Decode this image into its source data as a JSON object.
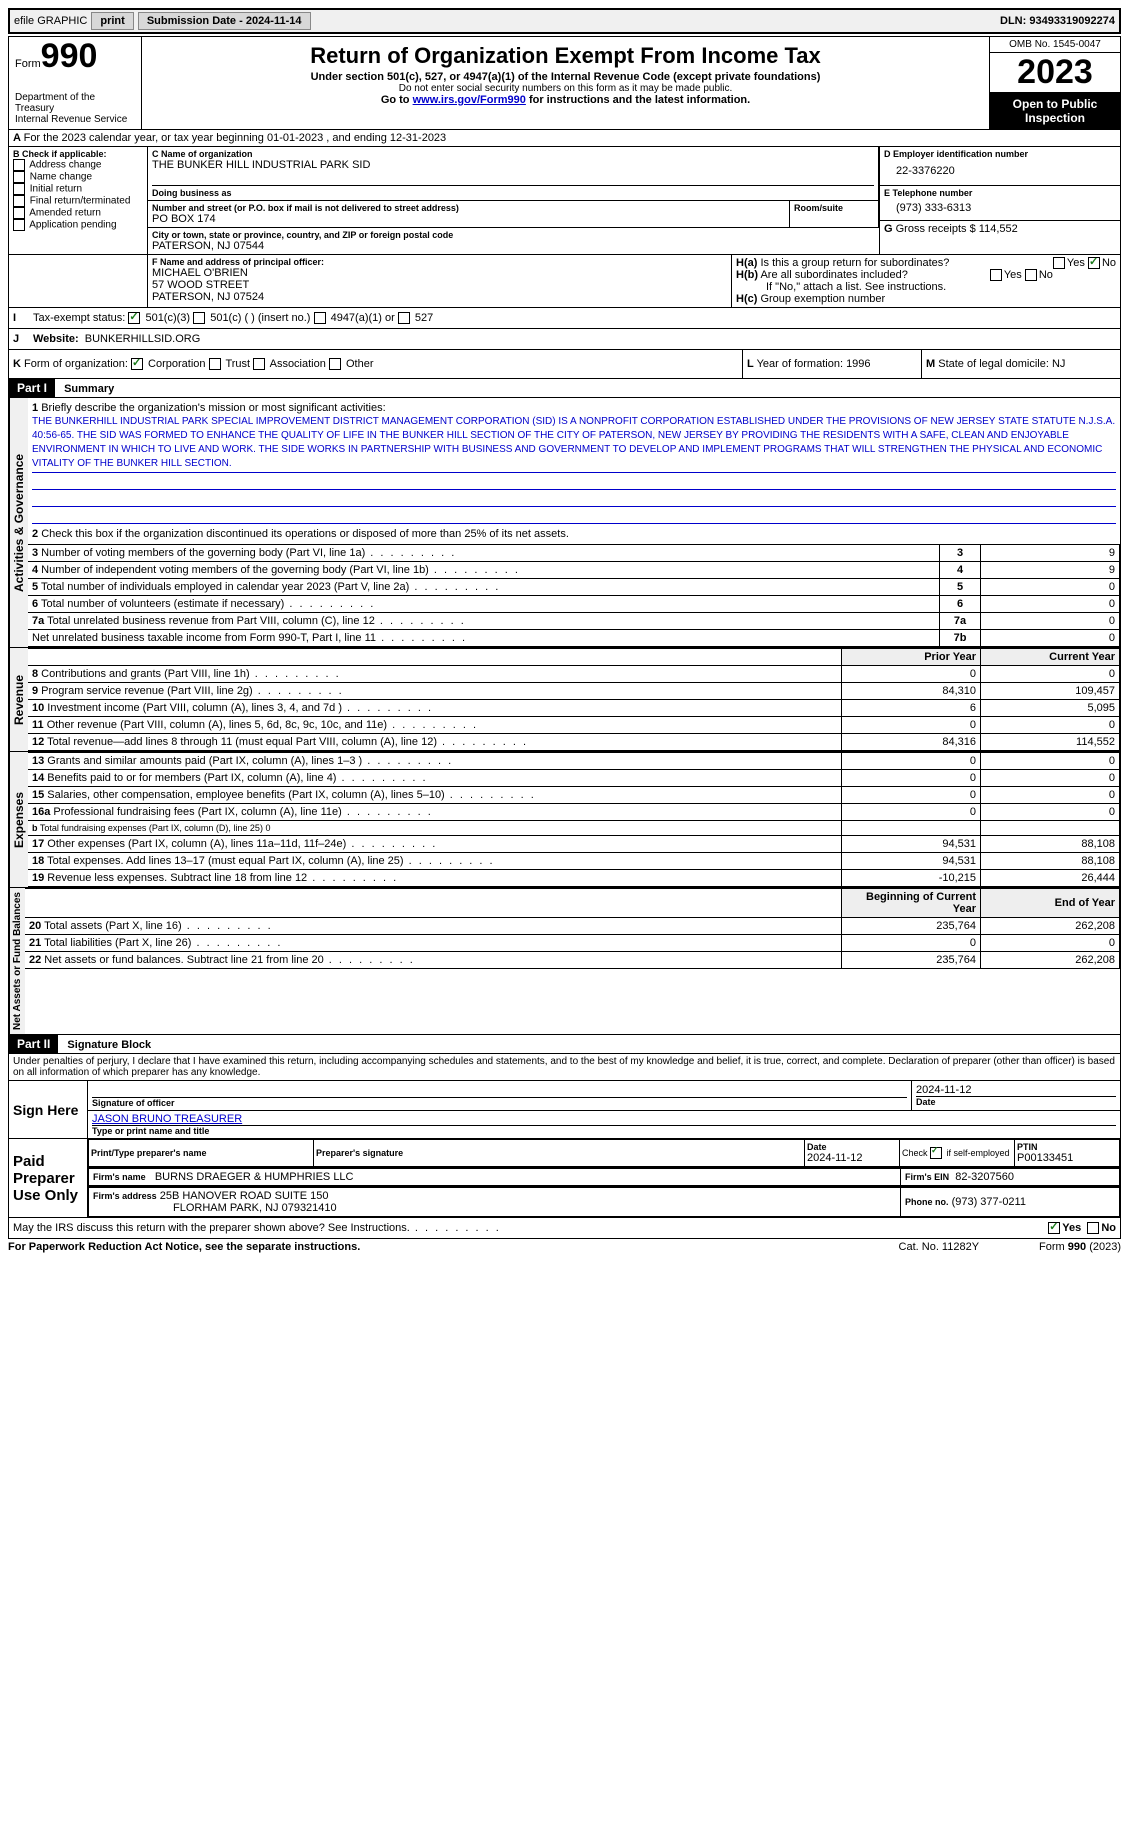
{
  "topbar": {
    "efile": "efile GRAPHIC",
    "print": "print",
    "submission": "Submission Date - 2024-11-14",
    "dln": "DLN: 93493319092274"
  },
  "header": {
    "form": "Form",
    "num": "990",
    "dept": "Department of the Treasury",
    "irs": "Internal Revenue Service",
    "title": "Return of Organization Exempt From Income Tax",
    "subtitle": "Under section 501(c), 527, or 4947(a)(1) of the Internal Revenue Code (except private foundations)",
    "ssn": "Do not enter social security numbers on this form as it may be made public.",
    "goto": "Go to ",
    "goto_link": "www.irs.gov/Form990",
    "goto_after": " for instructions and the latest information.",
    "omb": "OMB No. 1545-0047",
    "year": "2023",
    "open": "Open to Public Inspection"
  },
  "sectionA": "For the 2023 calendar year, or tax year beginning 01-01-2023    , and ending 12-31-2023",
  "sectionB": {
    "header": "Check if applicable:",
    "items": [
      "Address change",
      "Name change",
      "Initial return",
      "Final return/terminated",
      "Amended return",
      "Application pending"
    ]
  },
  "sectionC": {
    "label_name": "Name of organization",
    "name": "THE BUNKER HILL INDUSTRIAL PARK SID",
    "dba_label": "Doing business as",
    "addr_label": "Number and street (or P.O. box if mail is not delivered to street address)",
    "room": "Room/suite",
    "addr": "PO BOX 174",
    "city_label": "City or town, state or province, country, and ZIP or foreign postal code",
    "city": "PATERSON, NJ  07544"
  },
  "sectionD": {
    "label": "Employer identification number",
    "val": "22-3376220"
  },
  "sectionE": {
    "label": "Telephone number",
    "val": "(973) 333-6313"
  },
  "sectionG": {
    "label": "Gross receipts $",
    "val": "114,552"
  },
  "sectionF": {
    "label": "Name and address of principal officer:",
    "name": "MICHAEL O'BRIEN",
    "addr1": "57 WOOD STREET",
    "addr2": "PATERSON, NJ  07524"
  },
  "sectionH": {
    "a": "Is this a group return for subordinates?",
    "b": "Are all subordinates included?",
    "bnote": "If \"No,\" attach a list. See instructions.",
    "c": "Group exemption number"
  },
  "sectionI": {
    "label": "Tax-exempt status:",
    "opt1": "501(c)(3)",
    "opt2": "501(c) (   ) (insert no.)",
    "opt3": "4947(a)(1) or",
    "opt4": "527"
  },
  "sectionJ": {
    "label": "Website:",
    "val": "BUNKERHILLSID.ORG"
  },
  "sectionK": {
    "label": "Form of organization:",
    "opts": [
      "Corporation",
      "Trust",
      "Association",
      "Other"
    ]
  },
  "sectionL": {
    "label": "Year of formation:",
    "val": "1996"
  },
  "sectionM": {
    "label": "State of legal domicile:",
    "val": "NJ"
  },
  "part1": {
    "header": "Part I",
    "title": "Summary",
    "q1": "Briefly describe the organization's mission or most significant activities:",
    "mission": "THE BUNKERHILL INDUSTRIAL PARK SPECIAL IMPROVEMENT DISTRICT MANAGEMENT CORPORATION (SID) IS A NONPROFIT CORPORATION ESTABLISHED UNDER THE PROVISIONS OF NEW JERSEY STATE STATUTE N.J.S.A. 40:56-65. THE SID WAS FORMED TO ENHANCE THE QUALITY OF LIFE IN THE BUNKER HILL SECTION OF THE CITY OF PATERSON, NEW JERSEY BY PROVIDING THE RESIDENTS WITH A SAFE, CLEAN AND ENJOYABLE ENVIRONMENT IN WHICH TO LIVE AND WORK. THE SIDE WORKS IN PARTNERSHIP WITH BUSINESS AND GOVERNMENT TO DEVELOP AND IMPLEMENT PROGRAMS THAT WILL STRENGTHEN THE PHYSICAL AND ECONOMIC VITALITY OF THE BUNKER HILL SECTION.",
    "q2": "Check this box      if the organization discontinued its operations or disposed of more than 25% of its net assets.",
    "lines_gov": [
      {
        "n": "3",
        "t": "Number of voting members of the governing body (Part VI, line 1a)",
        "box": "3",
        "v": "9"
      },
      {
        "n": "4",
        "t": "Number of independent voting members of the governing body (Part VI, line 1b)",
        "box": "4",
        "v": "9"
      },
      {
        "n": "5",
        "t": "Total number of individuals employed in calendar year 2023 (Part V, line 2a)",
        "box": "5",
        "v": "0"
      },
      {
        "n": "6",
        "t": "Total number of volunteers (estimate if necessary)",
        "box": "6",
        "v": "0"
      },
      {
        "n": "7a",
        "t": "Total unrelated business revenue from Part VIII, column (C), line 12",
        "box": "7a",
        "v": "0"
      },
      {
        "n": "",
        "t": "Net unrelated business taxable income from Form 990-T, Part I, line 11",
        "box": "7b",
        "v": "0"
      }
    ],
    "prior": "Prior Year",
    "current": "Current Year",
    "lines_rev": [
      {
        "n": "8",
        "t": "Contributions and grants (Part VIII, line 1h)",
        "p": "0",
        "c": "0"
      },
      {
        "n": "9",
        "t": "Program service revenue (Part VIII, line 2g)",
        "p": "84,310",
        "c": "109,457"
      },
      {
        "n": "10",
        "t": "Investment income (Part VIII, column (A), lines 3, 4, and 7d )",
        "p": "6",
        "c": "5,095"
      },
      {
        "n": "11",
        "t": "Other revenue (Part VIII, column (A), lines 5, 6d, 8c, 9c, 10c, and 11e)",
        "p": "0",
        "c": "0"
      },
      {
        "n": "12",
        "t": "Total revenue—add lines 8 through 11 (must equal Part VIII, column (A), line 12)",
        "p": "84,316",
        "c": "114,552"
      }
    ],
    "lines_exp": [
      {
        "n": "13",
        "t": "Grants and similar amounts paid (Part IX, column (A), lines 1–3 )",
        "p": "0",
        "c": "0"
      },
      {
        "n": "14",
        "t": "Benefits paid to or for members (Part IX, column (A), line 4)",
        "p": "0",
        "c": "0"
      },
      {
        "n": "15",
        "t": "Salaries, other compensation, employee benefits (Part IX, column (A), lines 5–10)",
        "p": "0",
        "c": "0"
      },
      {
        "n": "16a",
        "t": "Professional fundraising fees (Part IX, column (A), line 11e)",
        "p": "0",
        "c": "0"
      },
      {
        "n": "b",
        "t": "Total fundraising expenses (Part IX, column (D), line 25) 0",
        "p": "",
        "c": "",
        "shaded": true
      },
      {
        "n": "17",
        "t": "Other expenses (Part IX, column (A), lines 11a–11d, 11f–24e)",
        "p": "94,531",
        "c": "88,108"
      },
      {
        "n": "18",
        "t": "Total expenses. Add lines 13–17 (must equal Part IX, column (A), line 25)",
        "p": "94,531",
        "c": "88,108"
      },
      {
        "n": "19",
        "t": "Revenue less expenses. Subtract line 18 from line 12",
        "p": "-10,215",
        "c": "26,444"
      }
    ],
    "begin": "Beginning of Current Year",
    "end": "End of Year",
    "lines_net": [
      {
        "n": "20",
        "t": "Total assets (Part X, line 16)",
        "p": "235,764",
        "c": "262,208"
      },
      {
        "n": "21",
        "t": "Total liabilities (Part X, line 26)",
        "p": "0",
        "c": "0"
      },
      {
        "n": "22",
        "t": "Net assets or fund balances. Subtract line 21 from line 20",
        "p": "235,764",
        "c": "262,208"
      }
    ],
    "sidebar": [
      "Activities & Governance",
      "Revenue",
      "Expenses",
      "Net Assets or Fund Balances"
    ]
  },
  "part2": {
    "header": "Part II",
    "title": "Signature Block",
    "decl": "Under penalties of perjury, I declare that I have examined this return, including accompanying schedules and statements, and to the best of my knowledge and belief, it is true, correct, and complete. Declaration of preparer (other than officer) is based on all information of which preparer has any knowledge.",
    "sign_here": "Sign Here",
    "sig_officer": "Signature of officer",
    "officer_name": "JASON BRUNO  TREASURER",
    "type_title": "Type or print name and title",
    "date": "Date",
    "date_val": "2024-11-12",
    "paid": "Paid Preparer Use Only",
    "prep_name_label": "Print/Type preparer's name",
    "prep_sig_label": "Preparer's signature",
    "prep_date": "2024-11-12",
    "check_self": "Check        if self-employed",
    "ptin_label": "PTIN",
    "ptin": "P00133451",
    "firm_name_label": "Firm's name",
    "firm_name": "BURNS DRAEGER & HUMPHRIES LLC",
    "firm_ein_label": "Firm's EIN",
    "firm_ein": "82-3207560",
    "firm_addr_label": "Firm's address",
    "firm_addr": "25B HANOVER ROAD SUITE 150",
    "firm_city": "FLORHAM PARK, NJ  079321410",
    "phone_label": "Phone no.",
    "phone": "(973) 377-0211",
    "discuss": "May the IRS discuss this return with the preparer shown above? See Instructions.",
    "yes": "Yes",
    "no": "No"
  },
  "footer": {
    "paperwork": "For Paperwork Reduction Act Notice, see the separate instructions.",
    "cat": "Cat. No. 11282Y",
    "form": "Form 990 (2023)"
  }
}
